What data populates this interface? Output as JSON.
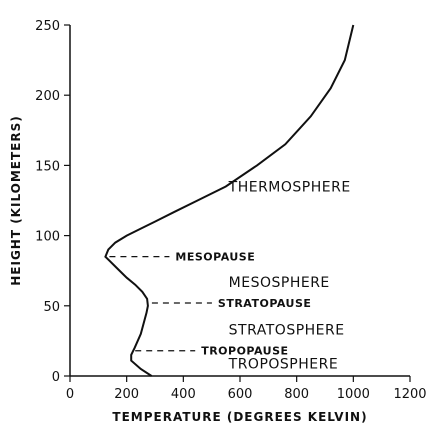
{
  "chart_data": {
    "type": "line",
    "title": "",
    "xlabel": "TEMPERATURE (DEGREES KELVIN)",
    "ylabel": "HEIGHT (KILOMETERS)",
    "xlim": [
      0,
      1200
    ],
    "ylim": [
      0,
      250
    ],
    "x_ticks": [
      "0",
      "200",
      "400",
      "600",
      "800",
      "1000",
      "1200"
    ],
    "y_ticks": [
      "0",
      "50",
      "100",
      "150",
      "200",
      "250"
    ],
    "grid": false,
    "series": [
      {
        "x": [
          288,
          250,
          216,
          216,
          228,
          250,
          270,
          275,
          272,
          255,
          230,
          200,
          180,
          160,
          140,
          125,
          135,
          160,
          200,
          250,
          300,
          370,
          450,
          550,
          660,
          760,
          850,
          920,
          970,
          1000
        ],
        "y": [
          0,
          5,
          11,
          15,
          20,
          30,
          45,
          50,
          55,
          60,
          65,
          70,
          74,
          78,
          82,
          85,
          90,
          95,
          100,
          105,
          110,
          117,
          125,
          135,
          150,
          165,
          185,
          205,
          225,
          250
        ]
      }
    ],
    "annotations": [
      {
        "label": "MESOPAUSE",
        "x_from": 125,
        "y": 85
      },
      {
        "label": "STRATOPAUSE",
        "x_from": 275,
        "y": 52
      },
      {
        "label": "TROPOPAUSE",
        "x_from": 216,
        "y": 18
      }
    ],
    "layers": [
      {
        "label": "THERMOSPHERE",
        "x": 800,
        "y": 135
      },
      {
        "label": "MESOSPHERE",
        "x": 800,
        "y": 67
      },
      {
        "label": "STRATOSPHERE",
        "x": 800,
        "y": 33
      },
      {
        "label": "TROPOSPHERE",
        "x": 800,
        "y": 9
      }
    ]
  }
}
